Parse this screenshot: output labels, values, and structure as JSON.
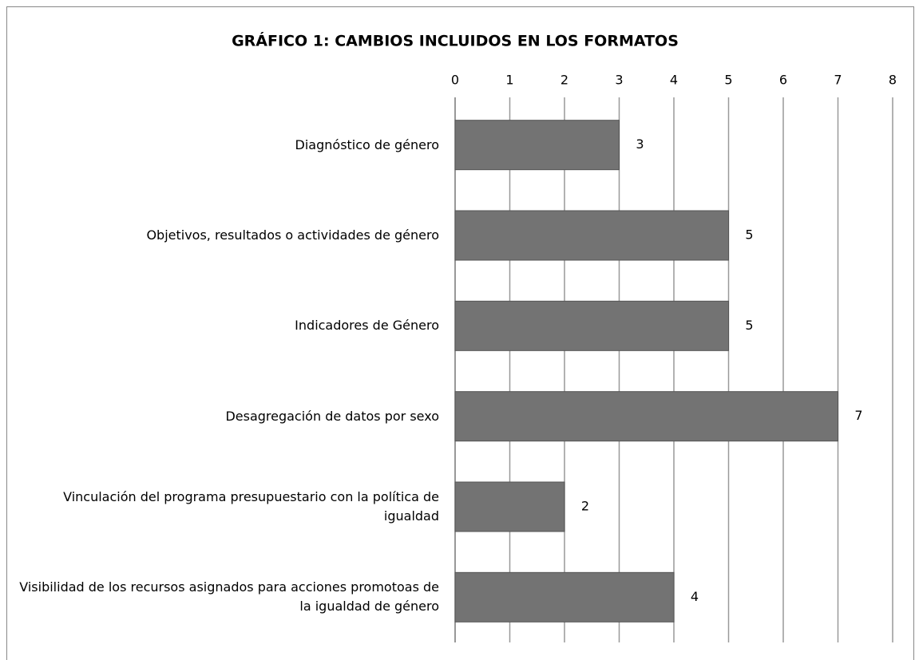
{
  "chart_data": {
    "type": "bar",
    "orientation": "horizontal",
    "title": "GRÁFICO 1: CAMBIOS INCLUIDOS EN LOS FORMATOS",
    "categories": [
      "Diagnóstico de género",
      "Objetivos, resultados o actividades de género",
      "Indicadores de Género",
      "Desagregación de datos por sexo",
      "Vinculación del programa presupuestario con la política de igualdad",
      "Visibilidad de los recursos asignados para acciones promotoas de la igualdad de género"
    ],
    "values": [
      3,
      5,
      5,
      7,
      2,
      4
    ],
    "color": "#737373",
    "xlim": [
      0,
      8
    ],
    "xticks": [
      0,
      1,
      2,
      3,
      4,
      5,
      6,
      7,
      8
    ],
    "grid": true
  }
}
